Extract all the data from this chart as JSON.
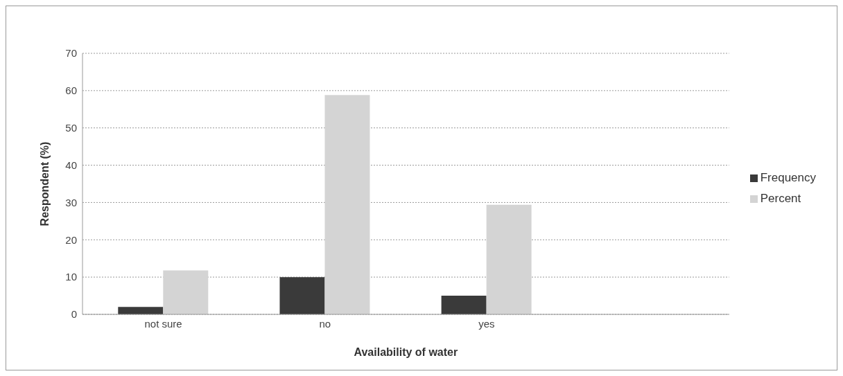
{
  "chart_data": {
    "type": "bar",
    "xlabel": "Availability of water",
    "ylabel": "Respondent (%)",
    "categories": [
      "not sure",
      "no",
      "yes",
      null
    ],
    "series": [
      {
        "name": "Frequency",
        "color": "#3a3a3a",
        "values": [
          2,
          10,
          5,
          null
        ]
      },
      {
        "name": "Percent",
        "color": "#d4d4d4",
        "values": [
          11.8,
          58.8,
          29.4,
          null
        ]
      }
    ],
    "ylim": [
      0,
      70
    ],
    "yticks": [
      0,
      10,
      20,
      30,
      40,
      50,
      60,
      70
    ],
    "grid": "y",
    "legend": "right"
  }
}
